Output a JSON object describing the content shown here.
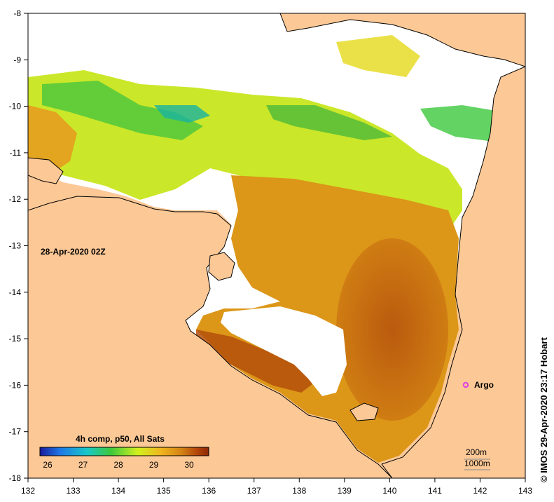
{
  "map": {
    "date_label": "28-Apr-2020 02Z",
    "product_label": "4h comp, p50, All Sats",
    "credit": "© IMOS 29-Apr-2020 23:17 Hobart",
    "colorbar": {
      "ticks": [
        "26",
        "27",
        "28",
        "29",
        "30"
      ],
      "colors": [
        "#1a1a9c",
        "#1e78e6",
        "#19c8c8",
        "#3cc83c",
        "#d2f01e",
        "#f0b41e",
        "#d28214",
        "#b4460a",
        "#8c280a"
      ]
    },
    "contour_legend": [
      "200m",
      "1000m"
    ],
    "argo_label": "Argo",
    "argo_color": "#e040e0",
    "land_color": "#fcc896",
    "axes": {
      "x_ticks": [
        "132",
        "133",
        "134",
        "135",
        "136",
        "137",
        "138",
        "139",
        "140",
        "141",
        "142",
        "143"
      ],
      "y_ticks": [
        "-8",
        "-9",
        "-10",
        "-11",
        "-12",
        "-13",
        "-14",
        "-15",
        "-16",
        "-17",
        "-18"
      ]
    }
  }
}
